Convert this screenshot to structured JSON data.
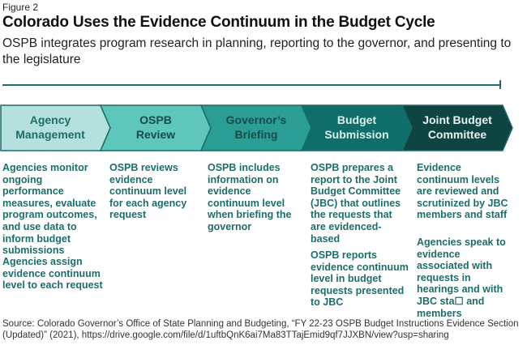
{
  "figure_label": "Figure 2",
  "title": "Colorado Uses the Evidence Continuum in the Budget Cycle",
  "subtitle": "OSPB integrates program research in planning, reporting to the governor, and presenting to the legislature",
  "stages": [
    {
      "label_line1": "Agency",
      "label_line2": "Management",
      "fill": "#b4e0dd",
      "text_color": "#1d6e6a",
      "notes": [
        "Agencies monitor ongoing performance measures, evaluate program outcomes, and use data to inform budget submissions",
        "Agencies assign evidence continuum level to each request"
      ]
    },
    {
      "label_line1": "OSPB",
      "label_line2": "Review",
      "fill": "#5ec6bb",
      "text_color": "#134e4b",
      "notes": [
        "OSPB reviews evidence continuum level for each agency request"
      ]
    },
    {
      "label_line1": "Governor’s",
      "label_line2": "Briefing",
      "fill": "#2a9e94",
      "text_color": "#134e4b",
      "notes": [
        "OSPB includes information on evidence continuum level when briefing the governor"
      ]
    },
    {
      "label_line1": "Budget",
      "label_line2": "Submission",
      "fill": "#0f6e69",
      "text_color": "#d8efed",
      "notes": [
        "OSPB prepares a report to the Joint Budget Committee (JBC) that outlines the requests that are evidenced-based",
        "OSPB reports evidence continuum level in budget requests presented to JBC"
      ]
    },
    {
      "label_line1": "Joint Budget",
      "label_line2": "Committee",
      "fill": "#0e4543",
      "text_color": "#e6f4f2",
      "notes": [
        "Evidence continuum levels are reviewed and scrutinized by JBC members and staff",
        "Agencies speak to evidence associated with requests in hearings and with JBC sta☐ and members"
      ]
    }
  ],
  "source": "Source: Colorado Governor’s Office of State Planning and Budgeting, “FY 22-23 OSPB Budget Instructions Evidence Section (Updated)” (2021), https://drive.google.com/file/d/1uftbQnK6ai7Ma83TTajEmid9qf7JJXBN/view?usp=sharing",
  "colors": {
    "accent": "#1d6e6a",
    "border": "#1b6b68"
  }
}
